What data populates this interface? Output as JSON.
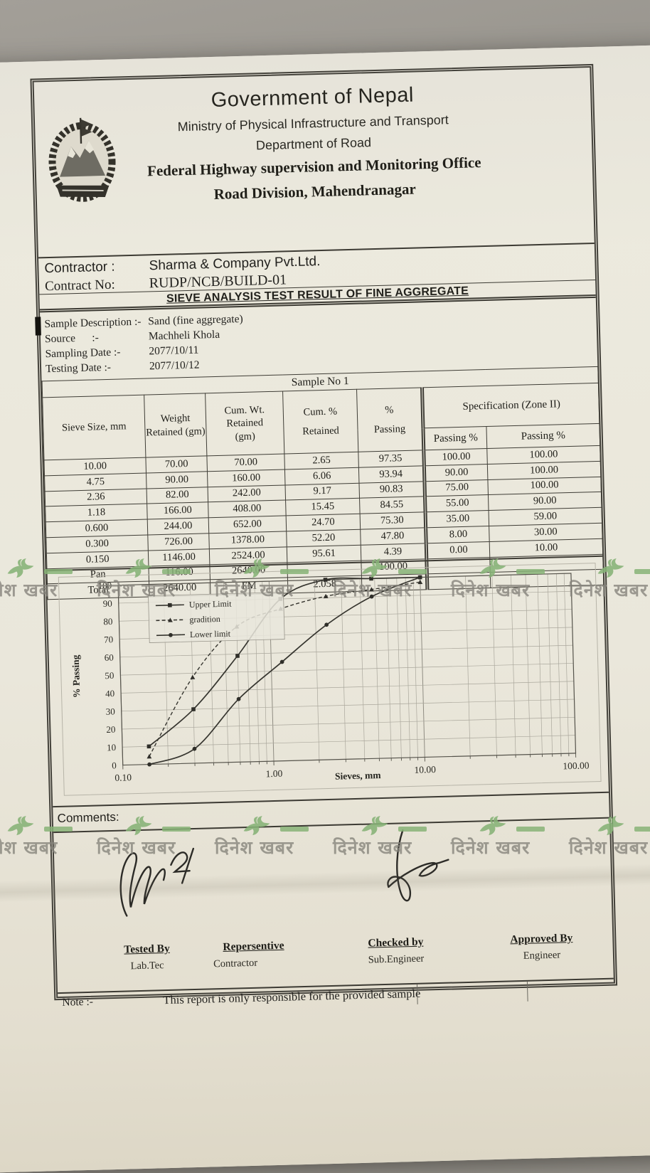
{
  "header": {
    "line1": "Government of Nepal",
    "line2": "Ministry of Physical Infrastructure and Transport",
    "line3": "Department of Road",
    "line4": "Federal Highway supervision and Monitoring Office",
    "line5": "Road Division, Mahendranagar"
  },
  "contract": {
    "contractor_label": "Contractor :",
    "contractor_value": "Sharma & Company Pvt.Ltd.",
    "contract_no_label": "Contract No:",
    "contract_no_value": "RUDP/NCB/BUILD-01"
  },
  "doc_title": "SIEVE ANALYSIS TEST RESULT OF FINE  AGGREGATE",
  "sample_info": {
    "rows": [
      {
        "label": "Sample Description :-",
        "value": "Sand (fine aggregate)"
      },
      {
        "label": "Source      :-",
        "value": "Machheli Khola"
      },
      {
        "label": "Sampling Date :-",
        "value": "2077/10/11"
      },
      {
        "label": "Testing Date :-",
        "value": "2077/10/12"
      }
    ]
  },
  "table": {
    "title": "Sample No 1",
    "spec_header": "Specification (Zone II)",
    "columns": [
      {
        "l1": "Sieve Size, mm",
        "l2": ""
      },
      {
        "l1": "Weight",
        "l2": "Retained (gm)"
      },
      {
        "l1": "Cum. Wt. Retained",
        "l2": "(gm)"
      },
      {
        "l1": "Cum. %",
        "l2": "Retained"
      },
      {
        "l1": "%",
        "l2": "Passing"
      },
      {
        "l1": "Passing %",
        "l2": ""
      },
      {
        "l1": "Passing %",
        "l2": ""
      }
    ],
    "rows": [
      [
        "10.00",
        "70.00",
        "70.00",
        "2.65",
        "97.35",
        "100.00",
        "100.00"
      ],
      [
        "4.75",
        "90.00",
        "160.00",
        "6.06",
        "93.94",
        "90.00",
        "100.00"
      ],
      [
        "2.36",
        "82.00",
        "242.00",
        "9.17",
        "90.83",
        "75.00",
        "100.00"
      ],
      [
        "1.18",
        "166.00",
        "408.00",
        "15.45",
        "84.55",
        "55.00",
        "90.00"
      ],
      [
        "0.600",
        "244.00",
        "652.00",
        "24.70",
        "75.30",
        "35.00",
        "59.00"
      ],
      [
        "0.300",
        "726.00",
        "1378.00",
        "52.20",
        "47.80",
        "8.00",
        "30.00"
      ],
      [
        "0.150",
        "1146.00",
        "2524.00",
        "95.61",
        "4.39",
        "0.00",
        "10.00"
      ],
      [
        "Pan",
        "116.00",
        "2640.00",
        "",
        "100.00",
        "",
        ""
      ],
      [
        "Total",
        "2640.00",
        "FM",
        "2.058",
        "",
        "",
        ""
      ]
    ]
  },
  "chart_data": {
    "type": "line",
    "title": "",
    "xlabel": "Sieves, mm",
    "ylabel": "% Passing",
    "x_scale": "log",
    "xlim": [
      0.1,
      100
    ],
    "ylim": [
      0,
      100
    ],
    "x_tick_labels": [
      "0.10",
      "1.00",
      "10.00",
      "100.00"
    ],
    "x_tick_values": [
      0.1,
      1,
      10,
      100
    ],
    "y_ticks": [
      0,
      10,
      20,
      30,
      40,
      50,
      60,
      70,
      80,
      90,
      100
    ],
    "grid": true,
    "legend_position": "top-left",
    "x": [
      0.15,
      0.3,
      0.6,
      1.18,
      2.36,
      4.75,
      10
    ],
    "series": [
      {
        "name": "Upper Limit",
        "marker": "square",
        "line": "solid",
        "values": [
          10,
          30,
          59,
          90,
          100,
          100,
          100
        ]
      },
      {
        "name": "gradition",
        "marker": "triangle",
        "line": "dashed",
        "values": [
          4.39,
          47.8,
          75.3,
          84.55,
          90.83,
          93.94,
          97.35
        ]
      },
      {
        "name": "Lower limit",
        "marker": "circle",
        "line": "solid",
        "values": [
          0,
          8,
          35,
          55,
          75,
          90,
          100
        ]
      }
    ]
  },
  "comments_label": "Comments:",
  "signatures": [
    {
      "title": "Tested By",
      "role": "Lab.Tec"
    },
    {
      "title": "Repersentive",
      "role": "Contractor"
    },
    {
      "title": "Checked by",
      "role": "Sub.Engineer"
    },
    {
      "title": "Approved By",
      "role": "Engineer"
    }
  ],
  "note": {
    "label": "Note :-",
    "text": "This report is only responsible for the provided sample"
  },
  "watermark": {
    "text": "दिनेश खबर",
    "green": "#87b377",
    "text_color": "#85837b",
    "band_tops": [
      784,
      1146
    ],
    "units_per_band": 6
  }
}
